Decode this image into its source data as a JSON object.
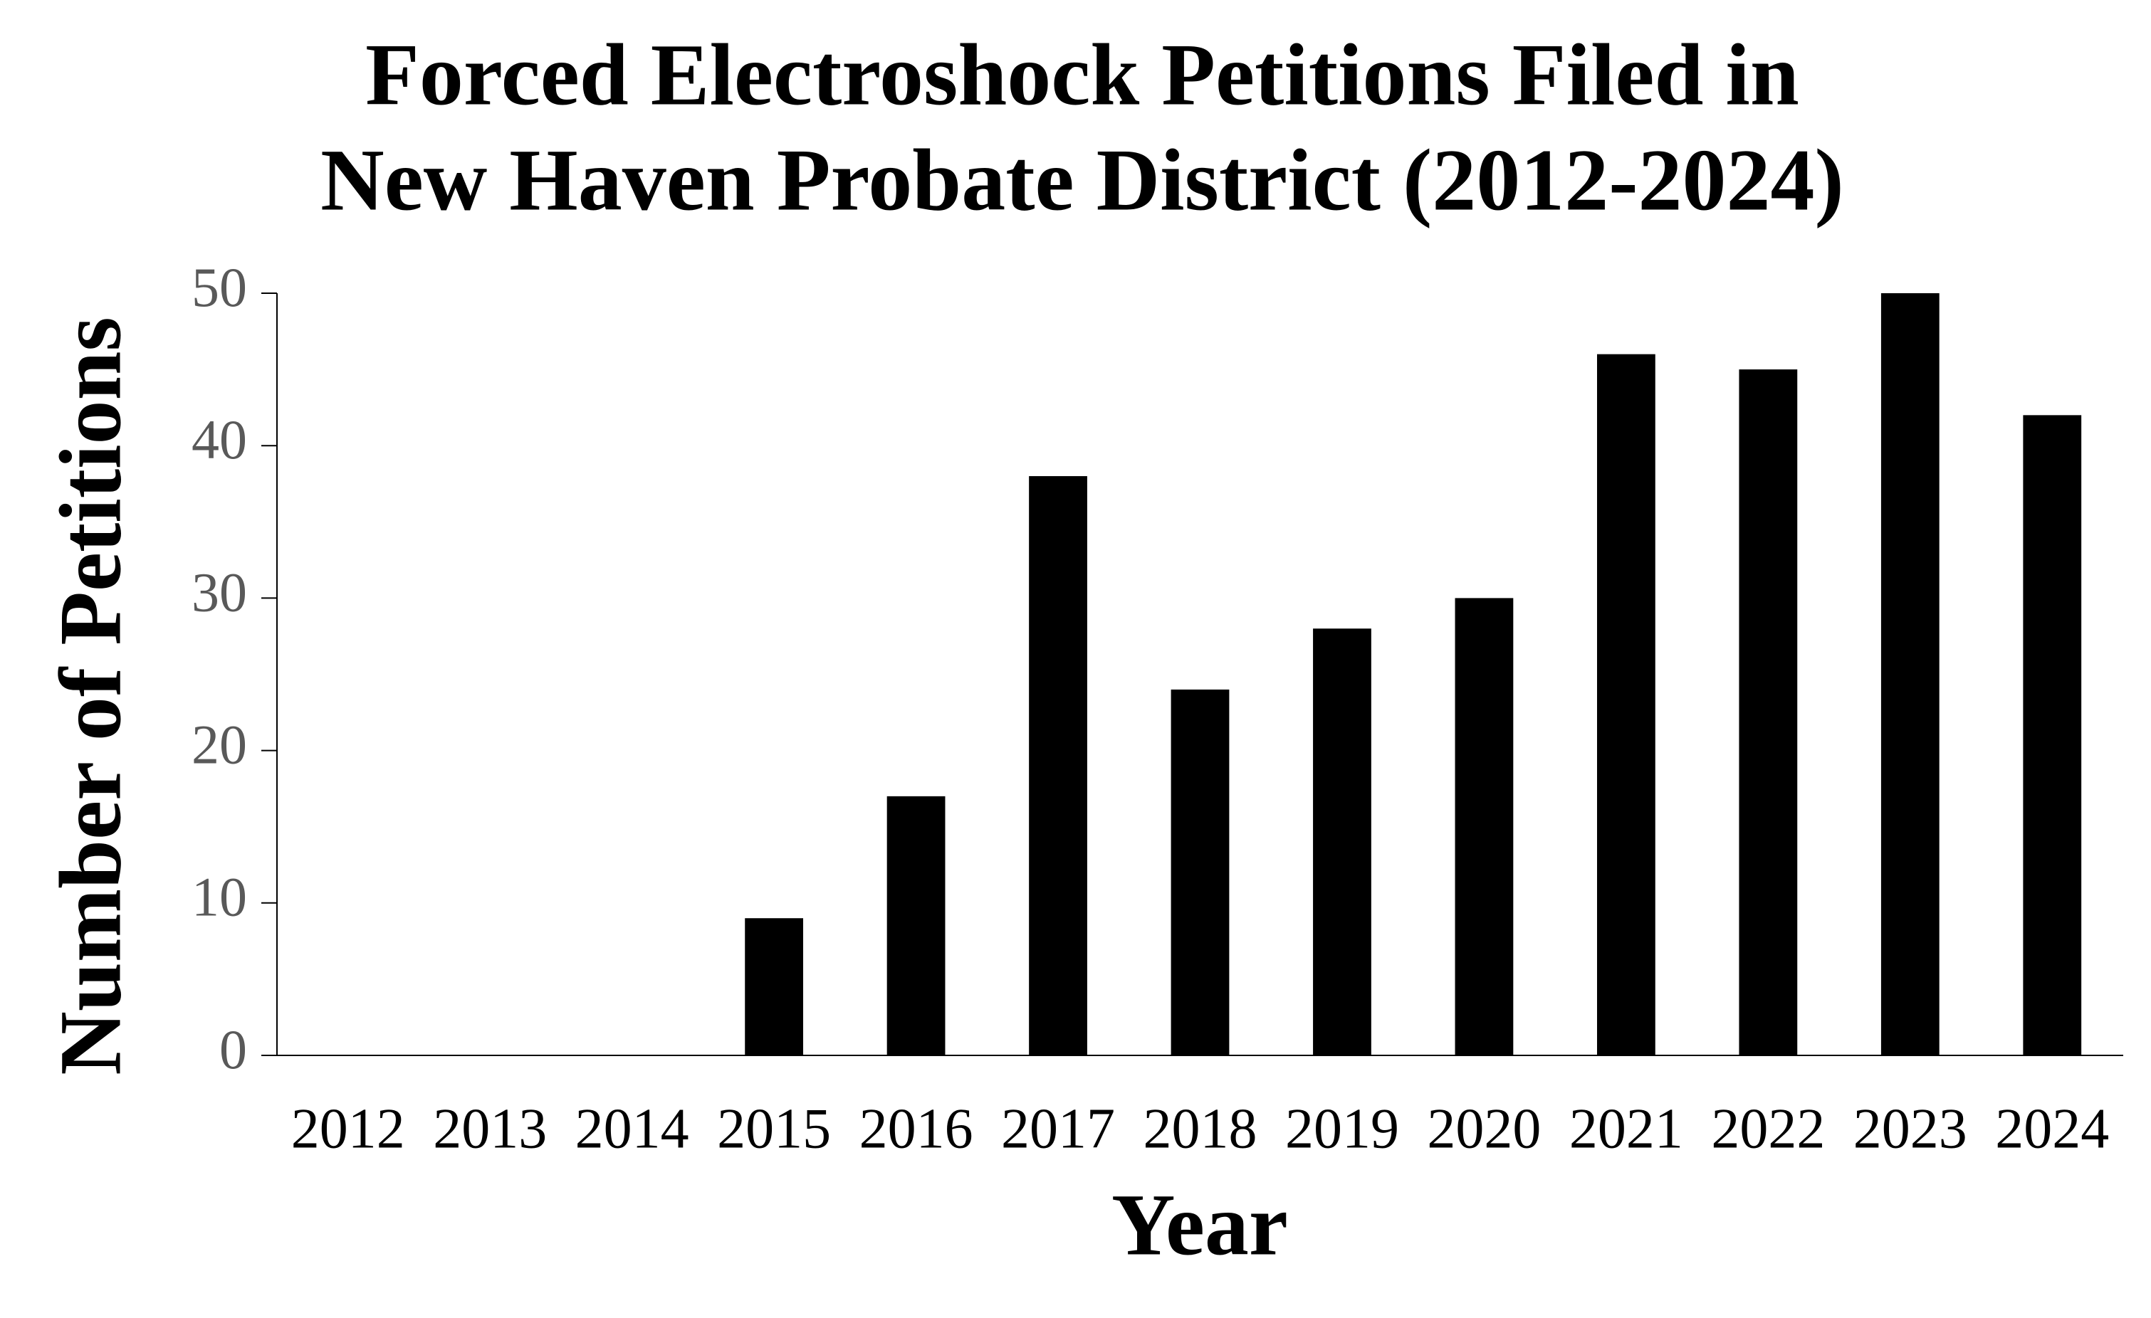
{
  "chart_data": {
    "type": "bar",
    "title": [
      "Forced Electroshock Petitions Filed in",
      "New Haven Probate District (2012-2024)"
    ],
    "x_label": "Year",
    "y_label": "Number of Petitions",
    "categories": [
      "2012",
      "2013",
      "2014",
      "2015",
      "2016",
      "2017",
      "2018",
      "2019",
      "2020",
      "2021",
      "2022",
      "2023",
      "2024"
    ],
    "values": [
      0,
      0,
      0,
      9,
      17,
      38,
      24,
      28,
      30,
      46,
      45,
      50,
      42
    ],
    "color": "#000000",
    "ylim": [
      0,
      50
    ],
    "yticks": [
      0,
      10,
      20,
      30,
      40,
      50
    ],
    "grid": false
  }
}
